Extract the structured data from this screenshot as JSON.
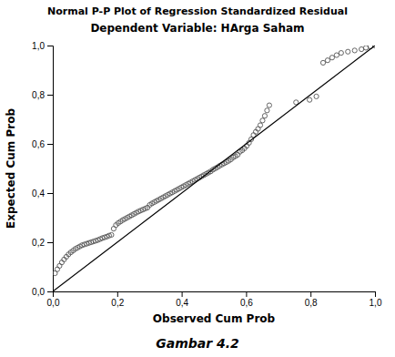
{
  "chart_data": {
    "type": "scatter",
    "title": "Normal P-P Plot of Regression Standardized Residual",
    "subtitle": "Dependent Variable: HArga Saham",
    "x_label": "Observed Cum Prob",
    "y_label": "Expected Cum Prob",
    "caption": "Gambar 4.2",
    "xlim": [
      0.0,
      1.0
    ],
    "ylim": [
      0.0,
      1.0
    ],
    "xticks": [
      {
        "value": 0.0,
        "label": "0,0"
      },
      {
        "value": 0.2,
        "label": "0,2"
      },
      {
        "value": 0.4,
        "label": "0,4"
      },
      {
        "value": 0.6,
        "label": "0,6"
      },
      {
        "value": 0.8,
        "label": "0,8"
      },
      {
        "value": 1.0,
        "label": "1,0"
      }
    ],
    "yticks": [
      {
        "value": 0.0,
        "label": "0,0"
      },
      {
        "value": 0.2,
        "label": "0,2"
      },
      {
        "value": 0.4,
        "label": "0,4"
      },
      {
        "value": 0.6,
        "label": "0,6"
      },
      {
        "value": 0.8,
        "label": "0,8"
      },
      {
        "value": 1.0,
        "label": "1,0"
      }
    ],
    "series": [
      {
        "type": "scatter",
        "marker": "circle-open",
        "color": "#555555",
        "x": [
          0.007,
          0.014,
          0.021,
          0.028,
          0.035,
          0.042,
          0.049,
          0.056,
          0.063,
          0.07,
          0.077,
          0.084,
          0.091,
          0.098,
          0.105,
          0.112,
          0.119,
          0.126,
          0.133,
          0.14,
          0.147,
          0.154,
          0.161,
          0.168,
          0.175,
          0.182,
          0.189,
          0.196,
          0.203,
          0.21,
          0.217,
          0.224,
          0.231,
          0.238,
          0.245,
          0.252,
          0.259,
          0.266,
          0.273,
          0.28,
          0.287,
          0.294,
          0.301,
          0.308,
          0.315,
          0.322,
          0.329,
          0.336,
          0.343,
          0.35,
          0.357,
          0.364,
          0.371,
          0.378,
          0.385,
          0.392,
          0.399,
          0.406,
          0.413,
          0.42,
          0.427,
          0.434,
          0.441,
          0.448,
          0.455,
          0.462,
          0.469,
          0.476,
          0.483,
          0.49,
          0.497,
          0.504,
          0.511,
          0.518,
          0.525,
          0.532,
          0.539,
          0.546,
          0.553,
          0.56,
          0.567,
          0.574,
          0.581,
          0.588,
          0.595,
          0.602,
          0.609,
          0.616,
          0.623,
          0.63,
          0.637,
          0.644,
          0.651,
          0.658,
          0.665,
          0.672,
          0.755,
          0.797,
          0.818,
          0.839,
          0.853,
          0.867,
          0.881,
          0.895,
          0.916,
          0.937,
          0.958,
          0.972,
          0.986,
          1.0
        ],
        "values": [
          0.074,
          0.09,
          0.104,
          0.118,
          0.13,
          0.141,
          0.151,
          0.159,
          0.166,
          0.173,
          0.178,
          0.183,
          0.188,
          0.191,
          0.194,
          0.197,
          0.2,
          0.203,
          0.206,
          0.209,
          0.213,
          0.217,
          0.22,
          0.223,
          0.227,
          0.23,
          0.255,
          0.27,
          0.278,
          0.284,
          0.29,
          0.295,
          0.3,
          0.305,
          0.31,
          0.315,
          0.32,
          0.325,
          0.329,
          0.333,
          0.337,
          0.341,
          0.352,
          0.358,
          0.363,
          0.368,
          0.373,
          0.378,
          0.383,
          0.388,
          0.393,
          0.398,
          0.403,
          0.408,
          0.413,
          0.418,
          0.423,
          0.428,
          0.433,
          0.438,
          0.443,
          0.448,
          0.453,
          0.458,
          0.463,
          0.468,
          0.473,
          0.478,
          0.483,
          0.488,
          0.495,
          0.5,
          0.505,
          0.511,
          0.516,
          0.521,
          0.526,
          0.531,
          0.537,
          0.545,
          0.55,
          0.556,
          0.568,
          0.574,
          0.582,
          0.592,
          0.604,
          0.619,
          0.636,
          0.649,
          0.661,
          0.676,
          0.695,
          0.714,
          0.736,
          0.757,
          0.769,
          0.779,
          0.793,
          0.93,
          0.94,
          0.951,
          0.961,
          0.97,
          0.975,
          0.98,
          0.985,
          0.991,
          0.996,
          1.0
        ]
      },
      {
        "type": "line",
        "line_style": "solid",
        "color": "#000000",
        "x": [
          0,
          1
        ],
        "values": [
          0,
          1
        ]
      }
    ]
  }
}
